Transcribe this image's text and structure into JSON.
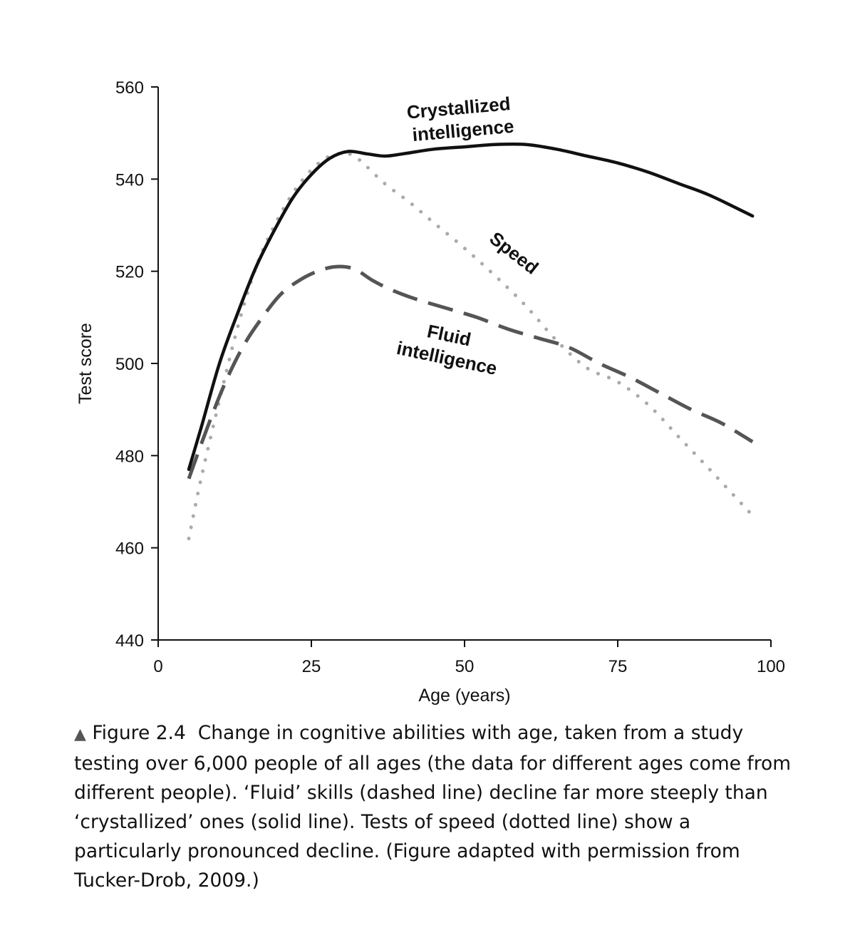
{
  "chart_data": {
    "type": "line",
    "title": "",
    "xlabel": "Age (years)",
    "ylabel": "Test score",
    "xlim": [
      0,
      100
    ],
    "ylim": [
      440,
      560
    ],
    "xticks": [
      0,
      25,
      50,
      75,
      100
    ],
    "yticks": [
      440,
      460,
      480,
      500,
      520,
      540,
      560
    ],
    "grid": false,
    "series": [
      {
        "name": "Crystallized intelligence",
        "style": "solid",
        "color": "#111111",
        "label_lines": [
          "Crystallized",
          "intelligence"
        ],
        "x": [
          5,
          7,
          10,
          13,
          16,
          19,
          22,
          25,
          28,
          31,
          34,
          37,
          40,
          45,
          50,
          55,
          60,
          65,
          70,
          75,
          80,
          85,
          90,
          97
        ],
        "y": [
          477,
          486,
          500,
          511,
          521,
          529,
          536,
          541,
          544.5,
          546,
          545.5,
          545,
          545.5,
          546.5,
          547,
          547.5,
          547.5,
          546.5,
          545,
          543.5,
          541.5,
          539,
          536.5,
          532
        ]
      },
      {
        "name": "Fluid intelligence",
        "style": "dashed",
        "color": "#555555",
        "label_lines": [
          "Fluid",
          "intelligence"
        ],
        "x": [
          5,
          8,
          11,
          14,
          17,
          20,
          23,
          26,
          29,
          32,
          35,
          38,
          42,
          47,
          52,
          57,
          62,
          67,
          72,
          77,
          82,
          87,
          92,
          97
        ],
        "y": [
          475,
          486,
          496,
          504,
          510,
          515,
          518,
          520,
          521,
          520.5,
          518,
          516,
          514,
          512,
          510,
          507.5,
          505.5,
          503.5,
          500,
          497,
          493.5,
          490,
          487,
          483
        ]
      },
      {
        "name": "Speed",
        "style": "dotted",
        "color": "#aaaaaa",
        "label_lines": [
          "Speed"
        ],
        "x": [
          5,
          7,
          10,
          13,
          16,
          19,
          22,
          25,
          28,
          31,
          33,
          37,
          41,
          45,
          50,
          55,
          60,
          65,
          70,
          75,
          80,
          85,
          90,
          97
        ],
        "y": [
          462,
          475,
          492,
          508,
          521,
          530,
          537,
          542,
          545,
          545.5,
          544,
          539,
          535,
          530.5,
          525,
          519,
          512.5,
          505,
          499,
          496,
          491,
          484,
          477,
          467
        ]
      }
    ]
  },
  "caption": {
    "marker": "▲",
    "label": "Figure 2.4",
    "text": "Change in cognitive abilities with age, taken from a study testing over 6,000 people of all ages (the data for different ages come from different people). ‘Fluid’ skills (dashed line) decline far more steeply than ‘crystallized’ ones (solid line). Tests of speed (dotted line) show a particularly pronounced decline. (Figure adapted with permission from Tucker-Drob, 2009.)"
  }
}
